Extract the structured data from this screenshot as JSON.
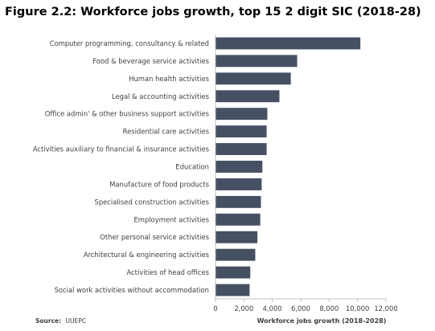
{
  "figure": {
    "title": "Figure 2.2: Workforce jobs growth, top 15 2 digit SIC (2018-28)",
    "source_label": "Source:",
    "source_value": "UUEPC"
  },
  "colors": {
    "bar": "#465063",
    "axis": "#bfbfbf",
    "text": "#404040"
  },
  "chart_data": {
    "type": "bar",
    "orientation": "horizontal",
    "title": "Figure 2.2: Workforce jobs growth, top 15 2 digit SIC (2018-28)",
    "xlabel": "Workforce jobs growth (2018-2028)",
    "ylabel": "",
    "xlim": [
      0,
      12000
    ],
    "xticks": [
      0,
      2000,
      4000,
      6000,
      8000,
      10000,
      12000
    ],
    "xtick_labels": [
      "0",
      "2,000",
      "4,000",
      "6,000",
      "8,000",
      "10,000",
      "12,000"
    ],
    "grid": false,
    "categories": [
      "Computer programming, consultancy & related",
      "Food & beverage service activities",
      "Human health activities",
      "Legal & accounting activities",
      "Office admin' & other business support activities",
      "Residential care activities",
      "Activities auxiliary to financial & insurance activities",
      "Education",
      "Manufacture of food products",
      "Specialised construction activities",
      "Employment activities",
      "Other personal service activities",
      "Architectural & engineering activities",
      "Activities of head offices",
      "Social work activities without accommodation"
    ],
    "values": [
      10200,
      5750,
      5300,
      4500,
      3650,
      3600,
      3600,
      3300,
      3250,
      3200,
      3150,
      2950,
      2800,
      2450,
      2400
    ]
  }
}
